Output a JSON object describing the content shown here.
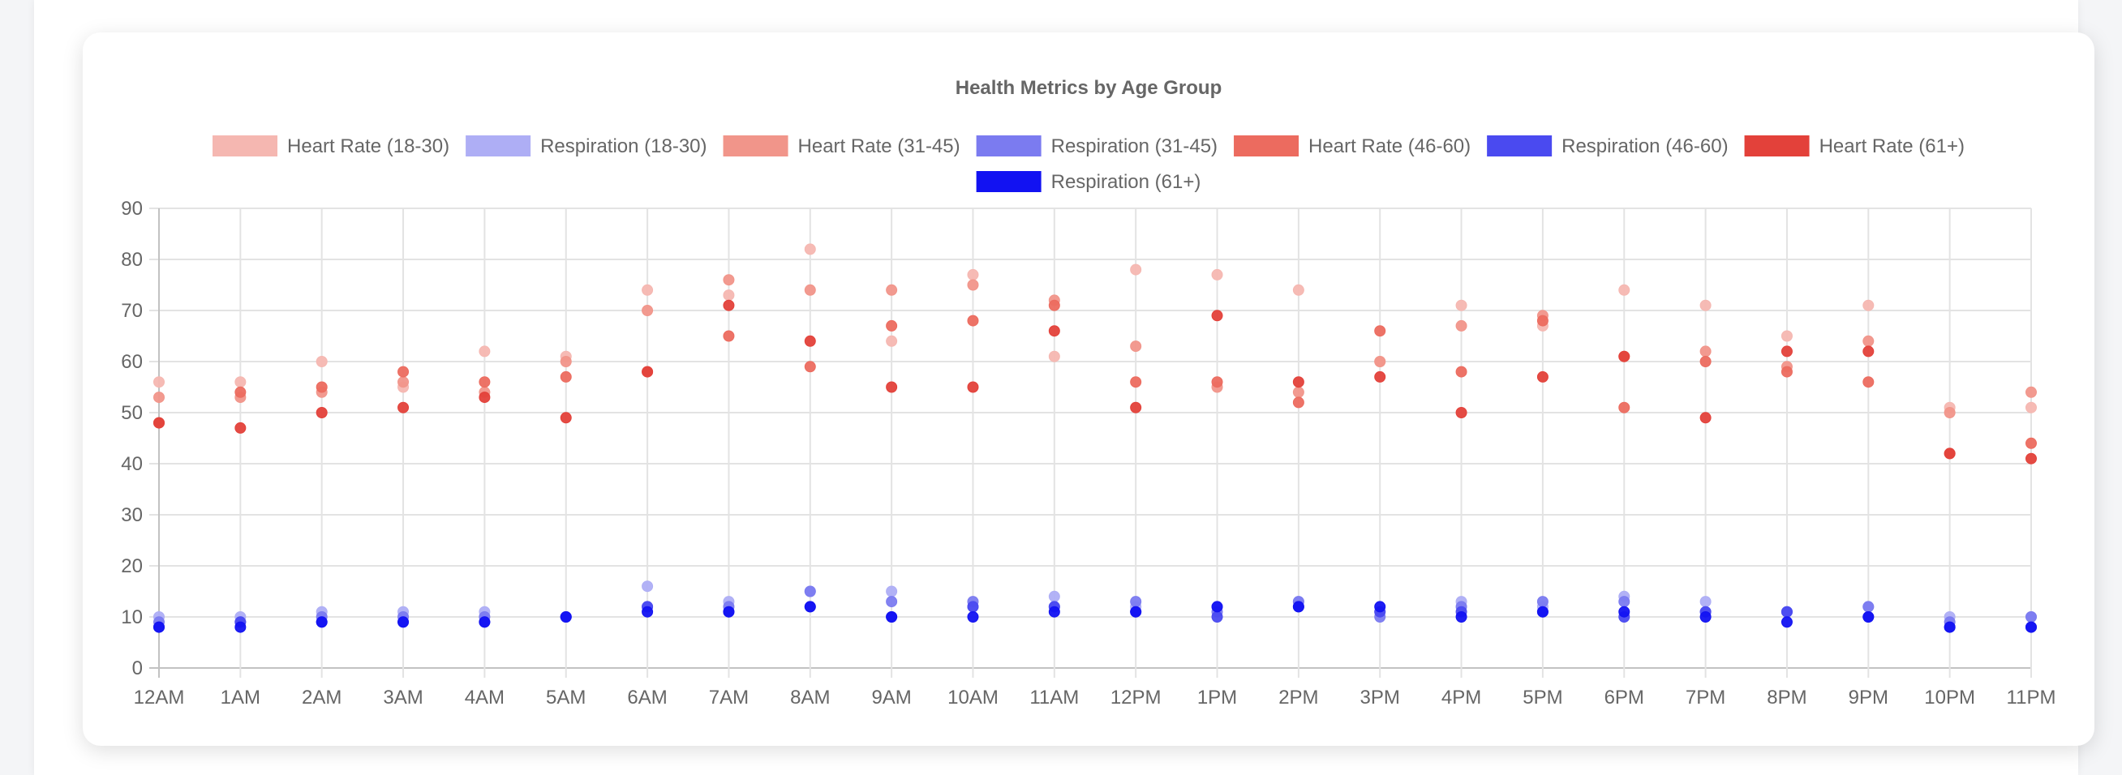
{
  "chart_data": {
    "type": "scatter",
    "title": "Health Metrics by Age Group",
    "xlabel": "",
    "ylabel": "",
    "ylim": [
      0,
      90
    ],
    "yticks": [
      0,
      10,
      20,
      30,
      40,
      50,
      60,
      70,
      80,
      90
    ],
    "categories": [
      "12AM",
      "1AM",
      "2AM",
      "3AM",
      "4AM",
      "5AM",
      "6AM",
      "7AM",
      "8AM",
      "9AM",
      "10AM",
      "11AM",
      "12PM",
      "1PM",
      "2PM",
      "3PM",
      "4PM",
      "5PM",
      "6PM",
      "7PM",
      "8PM",
      "9PM",
      "10PM",
      "11PM"
    ],
    "grid": true,
    "legend_position": "top",
    "series": [
      {
        "name": "Heart Rate (18-30)",
        "color": "#f5b7b1",
        "values": [
          56,
          56,
          60,
          55,
          62,
          61,
          74,
          73,
          82,
          64,
          77,
          61,
          78,
          77,
          74,
          60,
          71,
          67,
          74,
          71,
          65,
          71,
          51,
          51
        ]
      },
      {
        "name": "Respiration (18-30)",
        "color": "#aeaef5",
        "values": [
          10,
          10,
          11,
          11,
          11,
          10,
          16,
          13,
          15,
          15,
          12,
          14,
          12,
          12,
          13,
          11,
          13,
          12,
          14,
          13,
          11,
          12,
          10,
          10
        ]
      },
      {
        "name": "Heart Rate (31-45)",
        "color": "#f1958a",
        "values": [
          53,
          53,
          54,
          56,
          54,
          60,
          70,
          76,
          74,
          74,
          75,
          72,
          63,
          55,
          54,
          60,
          67,
          69,
          61,
          62,
          59,
          64,
          50,
          54
        ]
      },
      {
        "name": "Respiration (31-45)",
        "color": "#7b7bf0",
        "values": [
          9,
          9,
          10,
          10,
          10,
          10,
          12,
          12,
          15,
          13,
          13,
          12,
          13,
          11,
          13,
          10,
          12,
          13,
          13,
          11,
          11,
          12,
          9,
          10
        ]
      },
      {
        "name": "Heart Rate (46-60)",
        "color": "#ec6b5f",
        "values": [
          48,
          54,
          55,
          58,
          56,
          57,
          58,
          65,
          59,
          67,
          68,
          71,
          56,
          56,
          52,
          66,
          58,
          68,
          51,
          60,
          58,
          56,
          42,
          44
        ]
      },
      {
        "name": "Respiration (46-60)",
        "color": "#4a4af0",
        "values": [
          8,
          9,
          9,
          9,
          9,
          10,
          12,
          11,
          12,
          10,
          12,
          12,
          11,
          10,
          12,
          11,
          11,
          11,
          10,
          11,
          11,
          10,
          8,
          8
        ]
      },
      {
        "name": "Heart Rate (61+)",
        "color": "#e3413a",
        "values": [
          48,
          47,
          50,
          51,
          53,
          49,
          58,
          71,
          64,
          55,
          55,
          66,
          51,
          69,
          56,
          57,
          50,
          57,
          61,
          49,
          62,
          62,
          42,
          41
        ]
      },
      {
        "name": "Respiration (61+)",
        "color": "#1212f2",
        "values": [
          8,
          8,
          9,
          9,
          9,
          10,
          11,
          11,
          12,
          10,
          10,
          11,
          11,
          12,
          12,
          12,
          10,
          11,
          11,
          10,
          9,
          10,
          8,
          8
        ]
      }
    ]
  }
}
